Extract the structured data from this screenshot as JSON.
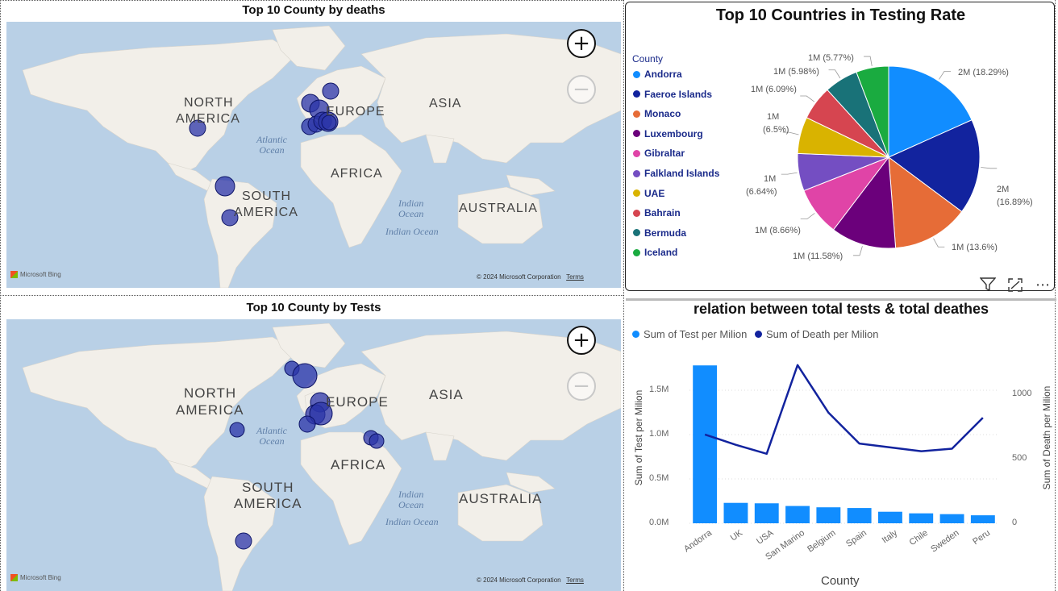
{
  "maps": {
    "deaths": {
      "title": "Top 10 County by deaths",
      "zoom_in": "+",
      "zoom_out": "−",
      "labels": {
        "north": "NORTH",
        "america": "AMERICA",
        "south": "SOUTH",
        "s_america": "AMERICA",
        "europe": "EUROPE",
        "asia": "ASIA",
        "africa": "AFRICA",
        "australia": "AUSTRALIA",
        "atlantic1": "Atlantic",
        "atlantic2": "Ocean",
        "indian1": "Indian",
        "indian2": "Ocean",
        "indian_ocean": "Indian Ocean"
      }
    },
    "tests": {
      "title": "Top 10 County by Tests",
      "zoom_in": "+",
      "zoom_out": "−",
      "labels": {
        "north": "NORTH",
        "america": "AMERICA",
        "south": "SOUTH",
        "s_america": "AMERICA",
        "europe": "EUROPE",
        "asia": "ASIA",
        "africa": "AFRICA",
        "australia": "AUSTRALIA",
        "atlantic1": "Atlantic",
        "atlantic2": "Ocean",
        "indian1": "Indian",
        "indian2": "Ocean",
        "indian_ocean": "Indian Ocean"
      }
    },
    "bing": "Microsoft Bing",
    "copyright": "© 2024 Microsoft Corporation",
    "terms": "Terms",
    "bubble_color": "#2b34a8"
  },
  "pie": {
    "title": "Top 10 Countries in Testing Rate",
    "legend_title": "County",
    "items": [
      {
        "name": "Andorra",
        "color": "#118dff",
        "label": "2M (18.29%)"
      },
      {
        "name": "Faeroe Islands",
        "color": "#12239e",
        "label": "2M (16.89%)"
      },
      {
        "name": "Monaco",
        "color": "#e66c37",
        "label": "1M (13.6%)"
      },
      {
        "name": "Luxembourg",
        "color": "#6b007b",
        "label": "1M (11.58%)"
      },
      {
        "name": "Gibraltar",
        "color": "#e044a7",
        "label": "1M (8.66%)"
      },
      {
        "name": "Falkland Islands",
        "color": "#744ec2",
        "label": "1M (6.64%)"
      },
      {
        "name": "UAE",
        "color": "#d9b300",
        "label": "1M (6.5%)"
      },
      {
        "name": "Bahrain",
        "color": "#d64550",
        "label": "1M (6.09%)"
      },
      {
        "name": "Bermuda",
        "color": "#197278",
        "label": "1M (5.98%)"
      },
      {
        "name": "Iceland",
        "color": "#1aab40",
        "label": "1M (5.77%)"
      }
    ],
    "label_lines": {
      "faeroe_a": "2M",
      "faeroe_b": "(16.89%)",
      "uae_a": "1M",
      "uae_b": "(6.5%)",
      "falk_a": "1M",
      "falk_b": "(6.64%)"
    },
    "toolbar": {
      "filter": "filter-icon",
      "focus": "focus-mode-icon",
      "more": "more-options-icon",
      "more_glyph": "⋯"
    }
  },
  "chart_data": {
    "type": "bar",
    "title": "relation between total tests & total deathes",
    "categories": [
      "Andorra",
      "UK",
      "USA",
      "San Marino",
      "Belgium",
      "Spain",
      "Italy",
      "Chile",
      "Sweden",
      "Peru"
    ],
    "series": [
      {
        "name": "Sum of Test per Milion",
        "type": "bar",
        "axis": "left",
        "color": "#118dff",
        "values": [
          1780000,
          230000,
          225000,
          195000,
          180000,
          172000,
          130000,
          112000,
          103000,
          90000
        ]
      },
      {
        "name": "Sum of Death per Milion",
        "type": "line",
        "axis": "right",
        "color": "#12239e",
        "values": [
          690,
          610,
          540,
          1230,
          860,
          620,
          590,
          560,
          580,
          820
        ]
      }
    ],
    "xlabel": "County",
    "ylabel": "Sum of Test per Milion",
    "y2label": "Sum of Death per Milion",
    "yticks": [
      "0.0M",
      "0.5M",
      "1.0M",
      "1.5M"
    ],
    "ylim": [
      0,
      1900000
    ],
    "y2ticks": [
      "0",
      "500",
      "1000"
    ],
    "y2lim": [
      0,
      1310
    ],
    "legend": "top-left"
  }
}
